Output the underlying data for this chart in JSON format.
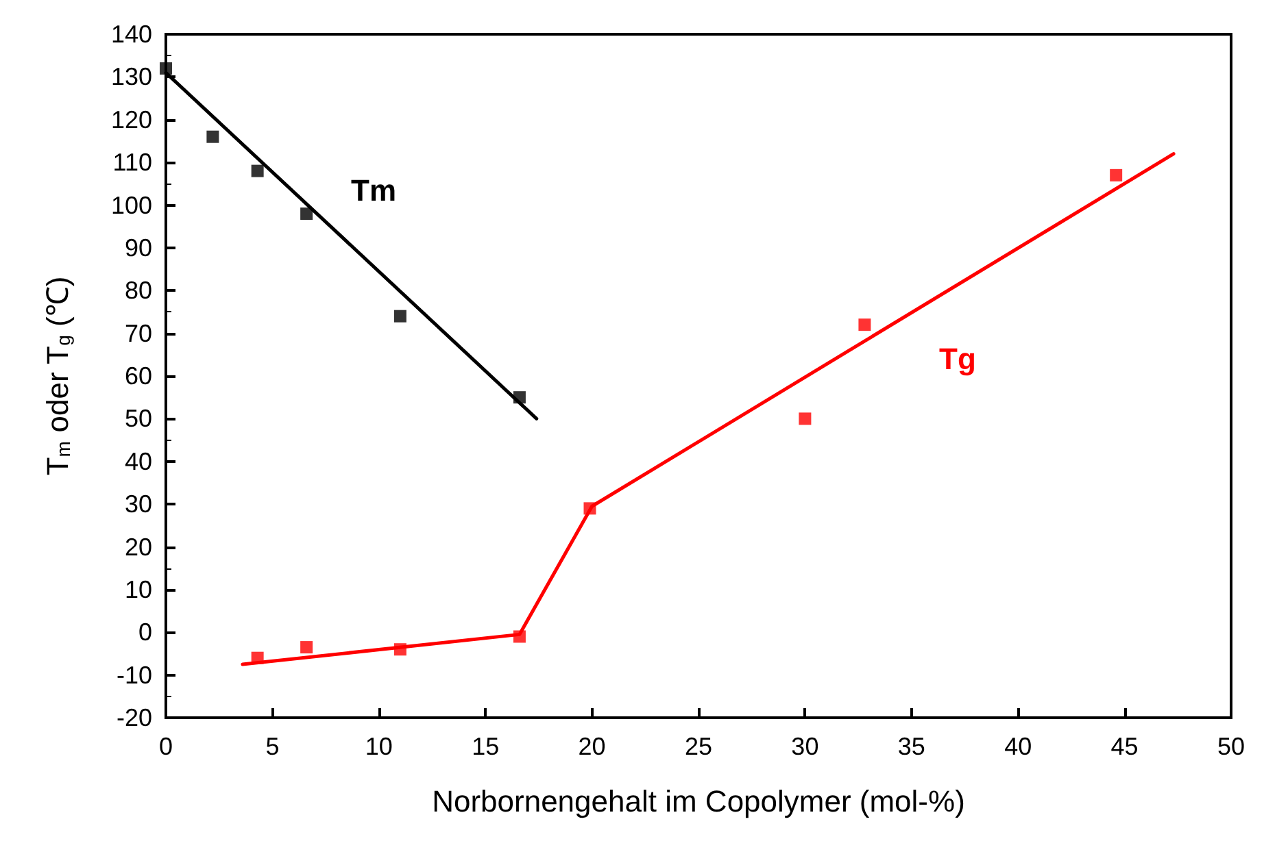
{
  "chart_data": {
    "type": "scatter",
    "xlabel": "Norbornengehalt im Copolymer (mol-%)",
    "ylabel": "T$_{m}$ oder T$_{g}$ (℃)",
    "xlim": [
      0,
      50
    ],
    "xticks": [
      0,
      5,
      10,
      15,
      20,
      25,
      30,
      35,
      40,
      45,
      50
    ],
    "ylim": [
      -20,
      140
    ],
    "yticks": [
      -20,
      -10,
      0,
      10,
      20,
      30,
      40,
      50,
      60,
      70,
      80,
      90,
      100,
      110,
      120,
      130,
      140
    ],
    "grid": false,
    "marker": "square",
    "series": [
      {
        "color": "#000000",
        "x": [
          0,
          2.2,
          4.3,
          6.6,
          11.0,
          16.6
        ],
        "values": [
          132,
          116,
          108,
          98,
          74,
          55
        ]
      },
      {
        "type": "line",
        "color": "#000000",
        "marker": "none",
        "x": [
          0,
          17.4
        ],
        "values": [
          131,
          50
        ]
      },
      {
        "color": "#ff0000",
        "x": [
          4.3,
          6.6,
          11.0,
          16.6,
          19.9,
          30.0,
          32.8,
          44.6
        ],
        "values": [
          -6,
          -3.5,
          -4,
          -1,
          29,
          50,
          72,
          107
        ]
      },
      {
        "type": "line",
        "color": "#ff0000",
        "marker": "none",
        "x": [
          3.6,
          16.6,
          20.0,
          47.3
        ],
        "values": [
          -7.5,
          -0.5,
          29.5,
          112
        ]
      }
    ],
    "annotations": [
      "Tm",
      "Tg"
    ]
  }
}
